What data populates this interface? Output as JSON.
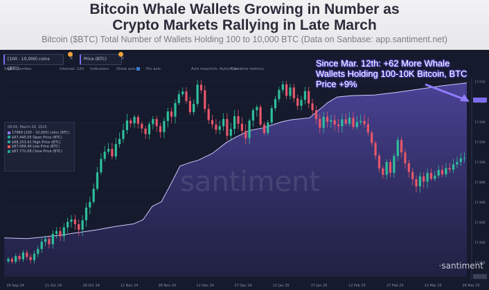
{
  "title_line1": "Bitcoin Whale Wallets Growing in Number as",
  "title_line2": "Crypto Markets Rallying in Late March",
  "subtitle": "Bitcoin ($BTC) Total Number of Wallets Holding 100 to 10,000 BTC (Data on Sanbase: app.santiment.net)",
  "toolbar": {
    "metric_chip": "[100 - 10,000) coins (BTC)",
    "price_chip": "Price (BTC)",
    "style": "Style: Candles",
    "interval": "Interval: 12h",
    "indicators": "Indicators",
    "show_axis": "Show axis",
    "pin_axis": "Pin axis",
    "axis_max": "Axis max/min: Auto/Auto",
    "combine": "Combine metrics"
  },
  "info": {
    "date": "09:00, March 26, 2025",
    "rows": [
      {
        "text": "17989  [100 - 10,000) coins (BTC)",
        "color": "#8a7cf0"
      },
      {
        "text": "$87,445.05  Open Price (BTC)",
        "color": "#26a69a"
      },
      {
        "text": "$88,253.91  High Price (BTC)",
        "color": "#26a69a"
      },
      {
        "text": "$87,069.40  Low Price (BTC)",
        "color": "#ef5350"
      },
      {
        "text": "$87,772.08  Close Price (BTC)",
        "color": "#26a69a"
      }
    ]
  },
  "annotation": "Since Mar. 12th: +62 More Whale Wallets Holding 100-10K Bitcoin, BTC Price +9%",
  "brand": "·santiment",
  "watermark": "santiment",
  "colors": {
    "up": "#2fbf9b",
    "down": "#e7576a",
    "area_fill": "#6d5ccf",
    "area_line": "#cfc9ff",
    "panel_bg": "#151a2c",
    "arrow": "#8f7cff"
  },
  "chart_data": {
    "type": "line",
    "x_ticks": [
      "29 Sep 24",
      "11 Oct 24",
      "28 Oct 24",
      "11 Nov 24",
      "28 Nov 24",
      "12 Dec 24",
      "27 Dec 24",
      "12 Jan 25",
      "27 Jan 25",
      "12 Feb 25",
      "27 Feb 25",
      "13 Mar 25",
      "26 Mar 25"
    ],
    "y_ticks_right": [
      "17.97K",
      "17.96K",
      "17.94K",
      "17.92K",
      "17.90K",
      "17.88K",
      "17.86K",
      "17.84K",
      "17.82K",
      "17.80K"
    ],
    "series": [
      {
        "name": "[100 - 10,000) coins (BTC)",
        "kind": "area",
        "points": [
          [
            0,
            17758
          ],
          [
            0.05,
            17757
          ],
          [
            0.08,
            17759
          ],
          [
            0.12,
            17762
          ],
          [
            0.16,
            17766
          ],
          [
            0.2,
            17770
          ],
          [
            0.24,
            17775
          ],
          [
            0.28,
            17779
          ],
          [
            0.3,
            17785
          ],
          [
            0.32,
            17805
          ],
          [
            0.34,
            17812
          ],
          [
            0.36,
            17838
          ],
          [
            0.38,
            17865
          ],
          [
            0.4,
            17870
          ],
          [
            0.42,
            17874
          ],
          [
            0.45,
            17884
          ],
          [
            0.48,
            17900
          ],
          [
            0.5,
            17908
          ],
          [
            0.53,
            17918
          ],
          [
            0.56,
            17922
          ],
          [
            0.6,
            17931
          ],
          [
            0.62,
            17934
          ],
          [
            0.66,
            17937
          ],
          [
            0.7,
            17960
          ],
          [
            0.72,
            17968
          ],
          [
            0.75,
            17970
          ],
          [
            0.8,
            17971
          ],
          [
            0.85,
            17975
          ],
          [
            0.9,
            17980
          ],
          [
            0.95,
            17985
          ],
          [
            1.0,
            17989
          ]
        ]
      },
      {
        "name": "Price (BTC)",
        "kind": "candles",
        "close": [
          62500,
          61800,
          63200,
          62400,
          64100,
          63000,
          62200,
          63800,
          65000,
          66800,
          67500,
          66200,
          68800,
          69500,
          68200,
          70400,
          71800,
          72400,
          71200,
          69800,
          72200,
          75400,
          76800,
          80100,
          84200,
          87600,
          89400,
          90100,
          88200,
          91300,
          92600,
          94800,
          97200,
          96500,
          98100,
          96400,
          95200,
          93800,
          96300,
          97600,
          95800,
          94300,
          97100,
          99500,
          98200,
          101600,
          103800,
          104500,
          102100,
          99300,
          101400,
          106200,
          104800,
          100100,
          97300,
          96200,
          94900,
          95800,
          97600,
          93400,
          95100,
          98300,
          96400,
          94600,
          92800,
          97200,
          99800,
          100600,
          96200,
          94100,
          96700,
          100300,
          102600,
          104900,
          106300,
          103400,
          105500,
          102800,
          100900,
          102400,
          104600,
          101500,
          99800,
          97600,
          95400,
          98100,
          96900,
          97300,
          96200,
          95800,
          97500,
          96400,
          97900,
          95600,
          96800,
          97100,
          96300,
          94200,
          91600,
          88400,
          85200,
          83600,
          86800,
          84100,
          88300,
          92300,
          89200,
          86500,
          84300,
          82500,
          80700,
          83200,
          81900,
          84100,
          82600,
          83400,
          84800,
          83700,
          85300,
          84900,
          86200,
          86800,
          87700,
          87772
        ]
      }
    ]
  }
}
